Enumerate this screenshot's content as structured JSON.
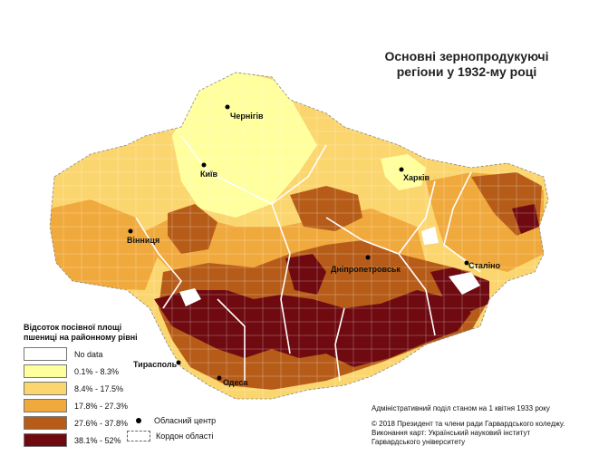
{
  "title_line1": "Основні зернопродукуючі",
  "title_line2": "регіони у 1932-му році",
  "colors": {
    "no_data": "#ffffff",
    "c1": "#ffff9e",
    "c2": "#fbd56e",
    "c3": "#f0a93c",
    "c4": "#b65c18",
    "c5": "#6e0a10"
  },
  "legend": {
    "title_line1": "Відсоток посівної площі",
    "title_line2": "пшениці на районному рівні",
    "items": [
      {
        "label": "No data",
        "color": "#ffffff"
      },
      {
        "label": "0.1% - 8.3%",
        "color": "#ffff9e"
      },
      {
        "label": "8.4% - 17.5%",
        "color": "#fbd56e"
      },
      {
        "label": "17.8% - 27.3%",
        "color": "#f0a93c"
      },
      {
        "label": "27.6% - 37.8%",
        "color": "#b65c18"
      },
      {
        "label": "38.1% - 52%",
        "color": "#6e0a10"
      }
    ],
    "center_label": "Обласний центр",
    "border_label": "Кордон області"
  },
  "cities": [
    {
      "name": "Чернігів"
    },
    {
      "name": "Київ"
    },
    {
      "name": "Харків"
    },
    {
      "name": "Вінниця"
    },
    {
      "name": "Дніпропетровськ"
    },
    {
      "name": "Сталіно"
    },
    {
      "name": "Тирасполь"
    },
    {
      "name": "Одеса"
    }
  ],
  "admin_note": "Адміністративний поділ станом на 1 квітня 1933 року",
  "credits": [
    "© 2018 Президент та члени ради Гарвардського коледжу.",
    "Виконання карт: Український науковий інститут",
    "Гарвардського університету"
  ]
}
